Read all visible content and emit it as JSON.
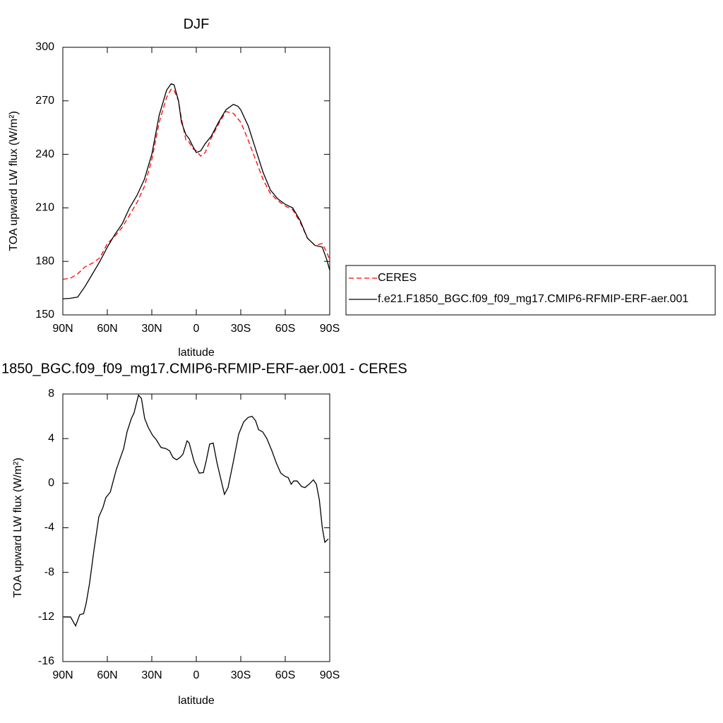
{
  "chart_data": [
    {
      "type": "line",
      "title": "DJF",
      "x_label": "latitude",
      "y_label": "TOA upward LW flux (W/m²)",
      "x": [
        90,
        85,
        80,
        75,
        70,
        65,
        60,
        55,
        50,
        45,
        40,
        35,
        30,
        25,
        20,
        17,
        15,
        12,
        10,
        7,
        5,
        2,
        0,
        -3,
        -6,
        -10,
        -15,
        -20,
        -25,
        -28,
        -30,
        -35,
        -40,
        -45,
        -50,
        -55,
        -60,
        -65,
        -70,
        -75,
        -80,
        -85,
        -88,
        -90
      ],
      "series": [
        {
          "name": "CERES",
          "color": "#ff0000",
          "dash": true,
          "values": [
            170,
            170.5,
            173,
            177,
            179,
            182,
            190,
            194,
            199,
            206,
            213,
            222,
            237,
            258,
            272,
            276.5,
            276,
            270,
            260,
            248,
            247,
            243,
            242,
            239,
            241,
            249,
            257,
            264,
            263,
            260,
            258,
            248,
            237,
            226,
            218,
            214,
            211,
            209,
            202,
            193,
            189,
            190,
            185,
            181
          ]
        },
        {
          "name": "f.e21.F1850_BGC.f09_f09_mg17.CMIP6-RFMIP-ERF-aer.001",
          "color": "#000000",
          "dash": false,
          "values": [
            159,
            159.3,
            160,
            166,
            173,
            180,
            188,
            195,
            201,
            210,
            217,
            226,
            240,
            262,
            276,
            279.5,
            279,
            270,
            258,
            251,
            249,
            244,
            241,
            242,
            246,
            250,
            258,
            265,
            268,
            267,
            265,
            256,
            243,
            230,
            220,
            215,
            212,
            210,
            203,
            193,
            189,
            188,
            181,
            175
          ]
        }
      ],
      "xlim": [
        90,
        -90
      ],
      "xticks": [
        {
          "value": 90,
          "label": "90N"
        },
        {
          "value": 60,
          "label": "60N"
        },
        {
          "value": 30,
          "label": "30N"
        },
        0,
        {
          "value": -30,
          "label": "30S"
        },
        {
          "value": -60,
          "label": "60S"
        },
        {
          "value": -90,
          "label": "90S"
        }
      ],
      "ylim": [
        150,
        300
      ],
      "yticks": [
        150,
        180,
        210,
        240,
        270,
        300
      ],
      "legend": "right"
    },
    {
      "type": "line",
      "title": "1850_BGC.f09_f09_mg17.CMIP6-RFMIP-ERF-aer.001 - CERES",
      "x_label": "latitude",
      "y_label": "TOA upward LW flux (W/m²)",
      "x": [
        89.5,
        84.8,
        81.4,
        78.6,
        76,
        74.3,
        72,
        69,
        65.7,
        63,
        61,
        58,
        56,
        54,
        51.4,
        49,
        46.7,
        43.8,
        42,
        39,
        37,
        34.8,
        32.4,
        29.5,
        27,
        23.8,
        20.5,
        18,
        15.7,
        13.3,
        11,
        9,
        6.2,
        4.8,
        1.4,
        -2,
        -4.8,
        -6.7,
        -9,
        -11.4,
        -14,
        -19,
        -21.4,
        -24.8,
        -28.6,
        -32,
        -35,
        -37.6,
        -40,
        -42,
        -44.8,
        -47.6,
        -51,
        -54,
        -57,
        -60,
        -62,
        -64,
        -65.7,
        -68,
        -71,
        -73.3,
        -76,
        -79,
        -81,
        -83,
        -85,
        -86.7,
        -89
      ],
      "series": [
        {
          "color": "#000000",
          "dash": false,
          "values": [
            -12,
            -12,
            -12.8,
            -11.8,
            -11.7,
            -10.8,
            -9,
            -6,
            -3,
            -2.2,
            -1.3,
            -0.8,
            0.2,
            1.2,
            2.2,
            3.1,
            4.6,
            5.8,
            6.3,
            7.9,
            7.6,
            5.8,
            5,
            4.3,
            3.9,
            3.2,
            3.1,
            2.9,
            2.3,
            2.1,
            2.3,
            2.6,
            3.8,
            3.6,
            1.9,
            0.9,
            0.95,
            2,
            3.5,
            3.6,
            1.8,
            -1,
            -0.4,
            1.8,
            4.4,
            5.5,
            5.9,
            6,
            5.6,
            4.8,
            4.6,
            4,
            2.9,
            1.8,
            0.9,
            0.6,
            0.5,
            -0.1,
            0.2,
            0.2,
            -0.3,
            -0.4,
            -0.1,
            0.3,
            -0.1,
            -1.5,
            -4,
            -5.3,
            -5
          ]
        }
      ],
      "xlim": [
        90,
        -90
      ],
      "xticks": [
        {
          "value": 90,
          "label": "90N"
        },
        {
          "value": 60,
          "label": "60N"
        },
        {
          "value": 30,
          "label": "30N"
        },
        0,
        {
          "value": -30,
          "label": "30S"
        },
        {
          "value": -60,
          "label": "60S"
        },
        {
          "value": -90,
          "label": "90S"
        }
      ],
      "ylim": [
        -16,
        8
      ],
      "yticks": [
        -16,
        -12,
        -8,
        -4,
        0,
        4,
        8
      ]
    }
  ]
}
